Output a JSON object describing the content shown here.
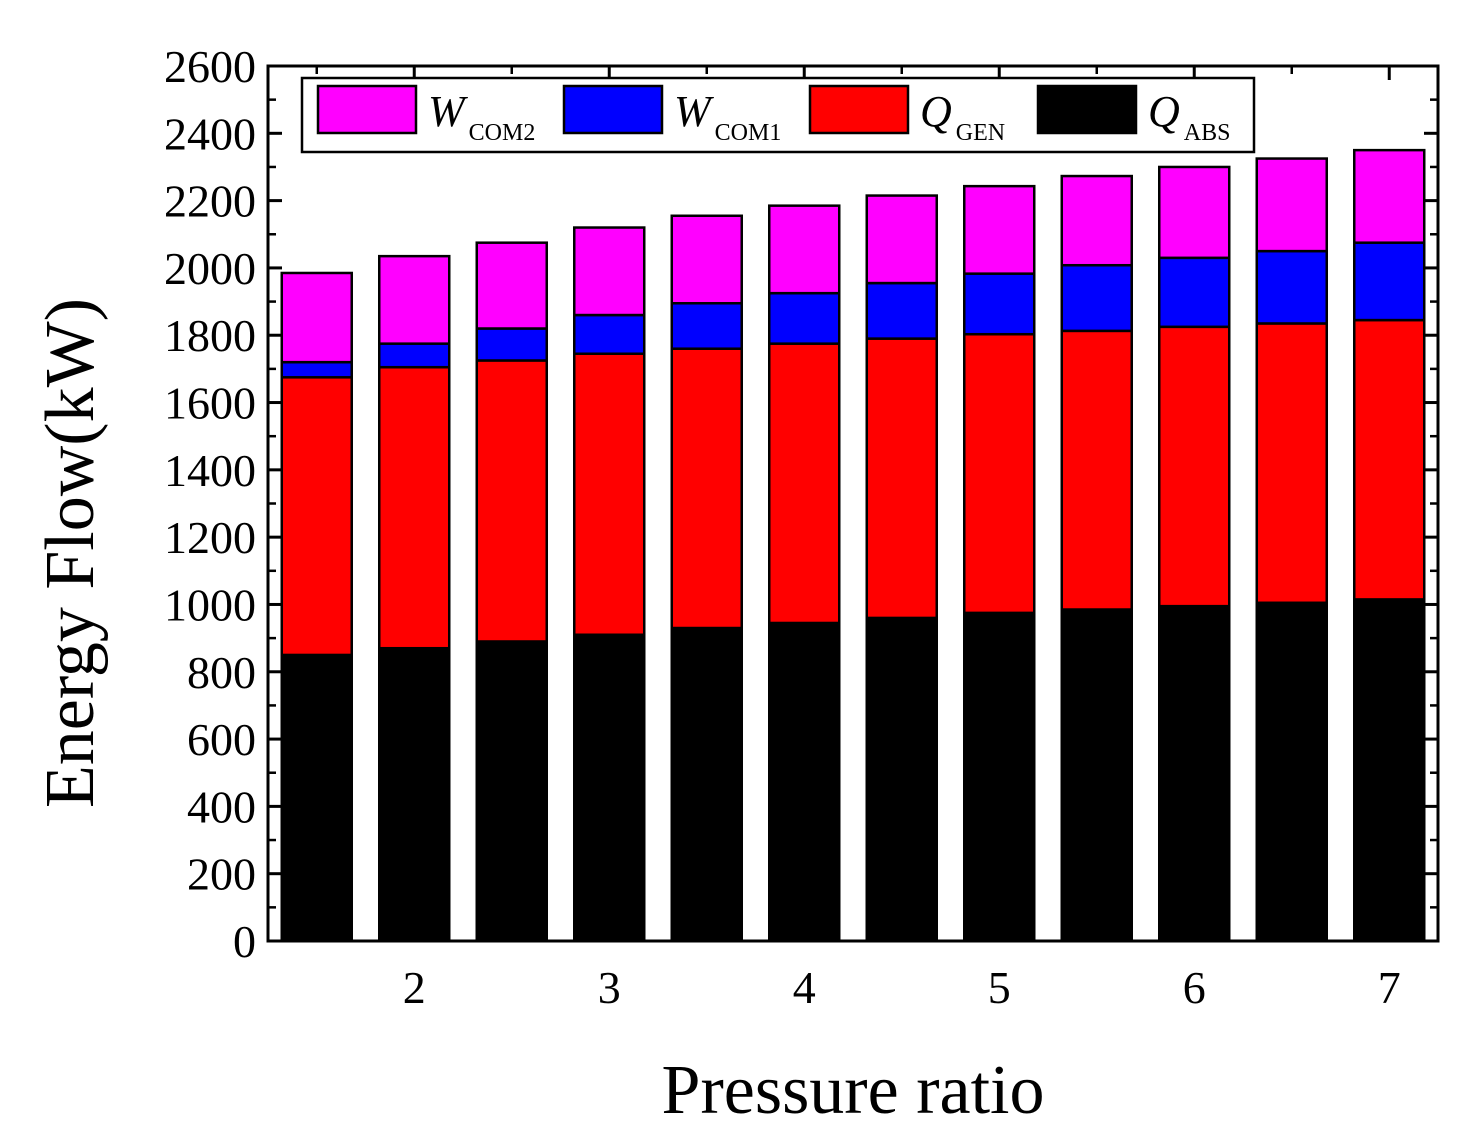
{
  "chart_data": {
    "type": "bar",
    "stacked": true,
    "title": "",
    "xlabel": "Pressure ratio",
    "ylabel": "Energy Flow(kW)",
    "x": [
      1.5,
      2.0,
      2.5,
      3.0,
      3.5,
      4.0,
      4.5,
      5.0,
      5.5,
      6.0,
      6.5,
      7.0
    ],
    "xlim": [
      1.25,
      7.25
    ],
    "ylim": [
      0,
      2600
    ],
    "xticks": [
      2,
      3,
      4,
      5,
      6,
      7
    ],
    "xtick_labels": [
      "2",
      "3",
      "4",
      "5",
      "6",
      "7"
    ],
    "yticks": [
      0,
      200,
      400,
      600,
      800,
      1000,
      1200,
      1400,
      1600,
      1800,
      2000,
      2200,
      2400,
      2600
    ],
    "ytick_labels": [
      "0",
      "200",
      "400",
      "600",
      "800",
      "1000",
      "1200",
      "1400",
      "1600",
      "1800",
      "2000",
      "2200",
      "2400",
      "2600"
    ],
    "legend_position": "top",
    "series": [
      {
        "name": "Q_ABS",
        "label_main": "Q",
        "label_sub": "ABS",
        "color": "#000000",
        "values": [
          850,
          870,
          890,
          910,
          930,
          945,
          960,
          975,
          985,
          995,
          1005,
          1015
        ]
      },
      {
        "name": "Q_GEN",
        "label_main": "Q",
        "label_sub": "GEN",
        "color": "#ff0000",
        "values": [
          825,
          835,
          835,
          835,
          830,
          830,
          830,
          828,
          828,
          830,
          830,
          830
        ]
      },
      {
        "name": "W_COM1",
        "label_main": "W",
        "label_sub": "COM1",
        "color": "#0000ff",
        "values": [
          45,
          70,
          95,
          115,
          135,
          150,
          165,
          180,
          195,
          205,
          215,
          230
        ]
      },
      {
        "name": "W_COM2",
        "label_main": "W",
        "label_sub": "COM2",
        "color": "#ff00ff",
        "values": [
          265,
          260,
          255,
          260,
          260,
          260,
          260,
          260,
          265,
          270,
          275,
          275
        ]
      }
    ],
    "legend_order": [
      "W_COM2",
      "W_COM1",
      "Q_GEN",
      "Q_ABS"
    ]
  }
}
